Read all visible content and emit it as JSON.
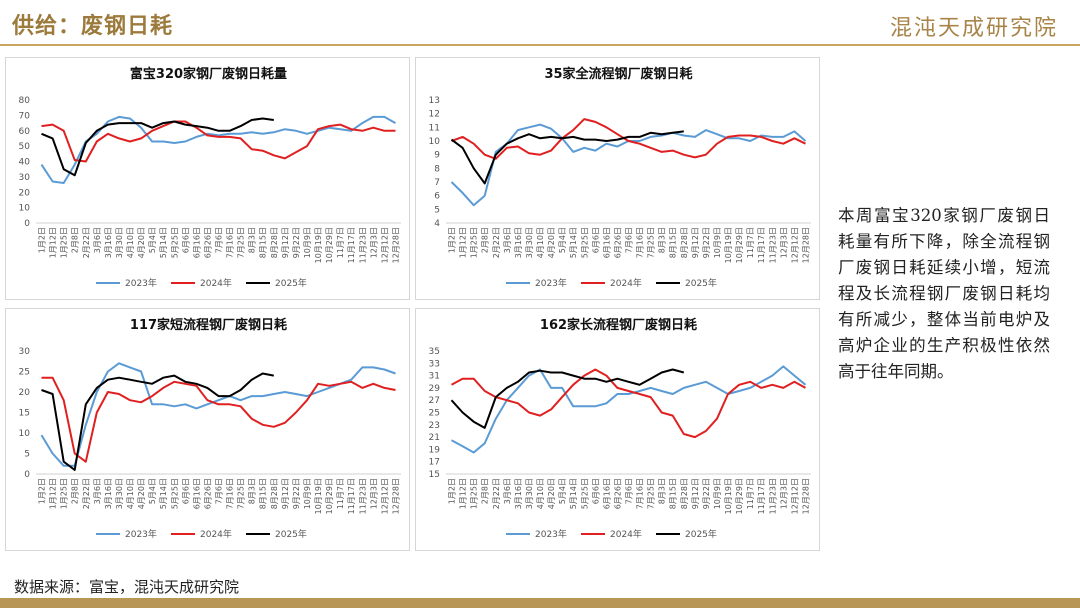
{
  "header": {
    "title": "供给：废钢日耗",
    "logo": "混沌天成研究院"
  },
  "note": "本周富宝320家钢厂废钢日耗量有所下降，除全流程钢厂废钢日耗延续小增，短流程及长流程钢厂废钢日耗均有所减少，整体当前电炉及高炉企业的生产积极性依然高于往年同期。",
  "footer": {
    "source": "数据来源：富宝，混沌天成研究院"
  },
  "chart_data": [
    {
      "type": "line",
      "title": "富宝320家钢厂废钢日耗量",
      "categories": [
        "1月2日",
        "1月12日",
        "1月25日",
        "2月8日",
        "2月22日",
        "3月6日",
        "3月16日",
        "3月30日",
        "4月10日",
        "4月20日",
        "5月4日",
        "5月14日",
        "5月25日",
        "6月6日",
        "6月16日",
        "6月26日",
        "7月6日",
        "7月16日",
        "7月25日",
        "8月3日",
        "8月15日",
        "8月28日",
        "9月12日",
        "9月22日",
        "10月9日",
        "10月19日",
        "10月29日",
        "11月7日",
        "11月17日",
        "11月23日",
        "12月3日",
        "12月12日",
        "12月28日"
      ],
      "series": [
        {
          "name": "2023年",
          "color": "#5b9bd5",
          "values": [
            38,
            27,
            26,
            38,
            53,
            58,
            66,
            69,
            68,
            62,
            53,
            53,
            52,
            53,
            56,
            58,
            57,
            58,
            58,
            59,
            58,
            59,
            61,
            60,
            58,
            60,
            62,
            61,
            60,
            65,
            69,
            69,
            65
          ]
        },
        {
          "name": "2024年",
          "color": "#e02020",
          "values": [
            63,
            64,
            60,
            41,
            40,
            53,
            58,
            55,
            53,
            55,
            60,
            63,
            66,
            66,
            62,
            57,
            56,
            56,
            55,
            48,
            47,
            44,
            42,
            46,
            50,
            61,
            63,
            64,
            61,
            60,
            62,
            60,
            60
          ]
        },
        {
          "name": "2025年",
          "color": "#000000",
          "values": [
            58,
            55,
            35,
            31,
            52,
            60,
            64,
            65,
            65,
            65,
            62,
            65,
            66,
            64,
            63,
            62,
            60,
            60,
            63,
            67,
            68,
            67,
            null,
            null,
            null,
            null,
            null,
            null,
            null,
            null,
            null,
            null,
            null
          ]
        }
      ],
      "ylim": [
        0,
        80
      ],
      "yticks": [
        0,
        10,
        20,
        30,
        40,
        50,
        60,
        70,
        80
      ],
      "grid": false
    },
    {
      "type": "line",
      "title": "35家全流程钢厂废钢日耗",
      "categories": [
        "1月2日",
        "1月12日",
        "1月25日",
        "2月8日",
        "2月22日",
        "3月6日",
        "3月16日",
        "3月30日",
        "4月10日",
        "4月20日",
        "5月4日",
        "5月14日",
        "5月25日",
        "6月6日",
        "6月16日",
        "6月26日",
        "7月6日",
        "7月16日",
        "7月25日",
        "8月3日",
        "8月15日",
        "8月28日",
        "9月12日",
        "9月22日",
        "10月9日",
        "10月19日",
        "10月29日",
        "11月7日",
        "11月17日",
        "11月23日",
        "12月3日",
        "12月12日",
        "12月28日"
      ],
      "series": [
        {
          "name": "2023年",
          "color": "#5b9bd5",
          "values": [
            7.0,
            6.2,
            5.3,
            6.0,
            9.2,
            9.8,
            10.8,
            11.0,
            11.2,
            10.9,
            10.2,
            9.2,
            9.5,
            9.3,
            9.8,
            9.6,
            10.0,
            10.0,
            10.3,
            10.4,
            10.6,
            10.4,
            10.3,
            10.8,
            10.5,
            10.2,
            10.2,
            10.0,
            10.4,
            10.3,
            10.3,
            10.7,
            10.0
          ]
        },
        {
          "name": "2024年",
          "color": "#e02020",
          "values": [
            10.0,
            10.3,
            9.8,
            9.0,
            8.7,
            9.5,
            9.6,
            9.1,
            9.0,
            9.3,
            10.2,
            10.8,
            11.6,
            11.4,
            11.0,
            10.5,
            10.0,
            9.8,
            9.5,
            9.2,
            9.3,
            9.0,
            8.8,
            9.0,
            9.8,
            10.3,
            10.4,
            10.4,
            10.3,
            10.0,
            9.8,
            10.2,
            9.8
          ]
        },
        {
          "name": "2025年",
          "color": "#000000",
          "values": [
            10.1,
            9.5,
            8.0,
            6.9,
            9.0,
            9.8,
            10.2,
            10.5,
            10.2,
            10.3,
            10.2,
            10.3,
            10.1,
            10.1,
            10.0,
            10.1,
            10.3,
            10.3,
            10.6,
            10.5,
            10.6,
            10.7,
            null,
            null,
            null,
            null,
            null,
            null,
            null,
            null,
            null,
            null,
            null
          ]
        }
      ],
      "ylim": [
        4,
        13
      ],
      "yticks": [
        4,
        5,
        6,
        7,
        8,
        9,
        10,
        11,
        12,
        13
      ],
      "grid": false
    },
    {
      "type": "line",
      "title": "117家短流程钢厂废钢日耗",
      "categories": [
        "1月2日",
        "1月12日",
        "1月25日",
        "2月8日",
        "2月22日",
        "3月6日",
        "3月16日",
        "3月30日",
        "4月10日",
        "4月20日",
        "5月4日",
        "5月14日",
        "5月25日",
        "6月6日",
        "6月16日",
        "6月26日",
        "7月6日",
        "7月16日",
        "7月25日",
        "8月3日",
        "8月15日",
        "8月28日",
        "9月12日",
        "9月22日",
        "10月9日",
        "10月19日",
        "10月29日",
        "11月7日",
        "11月17日",
        "11月23日",
        "12月3日",
        "12月12日",
        "12月28日"
      ],
      "series": [
        {
          "name": "2023年",
          "color": "#5b9bd5",
          "values": [
            9.5,
            5,
            2,
            2,
            12,
            20,
            25,
            27,
            26,
            25,
            17,
            17,
            16.5,
            17,
            16,
            17,
            18,
            19,
            18,
            19,
            19,
            19.5,
            20,
            19.5,
            19,
            20,
            21,
            22,
            23,
            26,
            26,
            25.5,
            24.5
          ]
        },
        {
          "name": "2024年",
          "color": "#e02020",
          "values": [
            23.5,
            23.5,
            18,
            5,
            3,
            15,
            20,
            19.5,
            18,
            17.5,
            19,
            21,
            22.5,
            22,
            21.5,
            18,
            17,
            17,
            16.5,
            13.5,
            12,
            11.5,
            12.5,
            15,
            18,
            22,
            21.5,
            22,
            22.5,
            21,
            22,
            21,
            20.5
          ]
        },
        {
          "name": "2025年",
          "color": "#000000",
          "values": [
            20.5,
            19.5,
            3,
            1,
            17,
            21,
            23,
            23.5,
            23,
            22.5,
            22,
            23.5,
            24,
            22.5,
            22,
            21,
            19,
            19,
            20.5,
            23,
            24.5,
            24,
            null,
            null,
            null,
            null,
            null,
            null,
            null,
            null,
            null,
            null,
            null
          ]
        }
      ],
      "ylim": [
        0,
        30
      ],
      "yticks": [
        0,
        5,
        10,
        15,
        20,
        25,
        30
      ],
      "grid": false
    },
    {
      "type": "line",
      "title": "162家长流程钢厂废钢日耗",
      "categories": [
        "1月2日",
        "1月12日",
        "1月25日",
        "2月8日",
        "2月22日",
        "3月6日",
        "3月16日",
        "3月30日",
        "4月10日",
        "4月20日",
        "5月4日",
        "5月14日",
        "5月25日",
        "6月6日",
        "6月16日",
        "6月26日",
        "7月6日",
        "7月16日",
        "7月25日",
        "8月3日",
        "8月15日",
        "8月28日",
        "9月12日",
        "9月22日",
        "10月9日",
        "10月19日",
        "10月29日",
        "11月7日",
        "11月17日",
        "11月23日",
        "12月3日",
        "12月12日",
        "12月28日"
      ],
      "series": [
        {
          "name": "2023年",
          "color": "#5b9bd5",
          "values": [
            20.5,
            19.5,
            18.5,
            20,
            24,
            27,
            29,
            31,
            32,
            29,
            29,
            26,
            26,
            26,
            26.5,
            28,
            28,
            28.5,
            29,
            28.5,
            28,
            29,
            29.5,
            30,
            29,
            28,
            28.5,
            29,
            30,
            31,
            32.5,
            31,
            29.5
          ]
        },
        {
          "name": "2024年",
          "color": "#e02020",
          "values": [
            29.5,
            30.5,
            30.5,
            28.5,
            27.5,
            27,
            26.5,
            25,
            24.5,
            25.5,
            27.5,
            29.5,
            31,
            32,
            31,
            29,
            28.5,
            28,
            27.5,
            25,
            24.5,
            21.5,
            21,
            22,
            24,
            28,
            29.5,
            30,
            29,
            29.5,
            29,
            30,
            29
          ]
        },
        {
          "name": "2025年",
          "color": "#000000",
          "values": [
            27,
            25,
            23.5,
            22.5,
            27.5,
            29,
            30,
            31.5,
            31.8,
            31.5,
            31.5,
            31,
            30.5,
            30.5,
            30,
            30.5,
            30,
            29.5,
            30.5,
            31.5,
            32,
            31.5,
            null,
            null,
            null,
            null,
            null,
            null,
            null,
            null,
            null,
            null,
            null
          ]
        }
      ],
      "ylim": [
        15,
        35
      ],
      "yticks": [
        15,
        17,
        19,
        21,
        23,
        25,
        27,
        29,
        31,
        33,
        35
      ],
      "grid": false
    }
  ]
}
